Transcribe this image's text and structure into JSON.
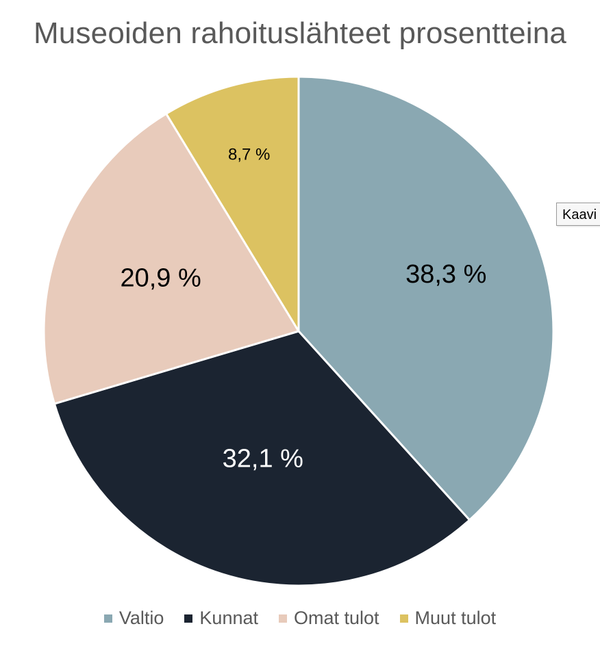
{
  "chart_data": {
    "type": "pie",
    "title": "Museoiden rahoituslähteet prosentteina",
    "categories": [
      "Valtio",
      "Kunnat",
      "Omat tulot",
      "Muut tulot"
    ],
    "values": [
      38.3,
      32.1,
      20.9,
      8.7
    ],
    "value_labels": [
      "38,3 %",
      "32,1 %",
      "20,9 %",
      "8,7 %"
    ],
    "colors": [
      "#8aa8b2",
      "#1b2431",
      "#e8cbbb",
      "#dcc261"
    ],
    "label_colors": [
      "#000000",
      "#ffffff",
      "#000000",
      "#000000"
    ],
    "legend_position": "bottom",
    "start_angle": "12 o'clock",
    "direction": "clockwise"
  },
  "tooltip": {
    "text": "Kaavi"
  }
}
